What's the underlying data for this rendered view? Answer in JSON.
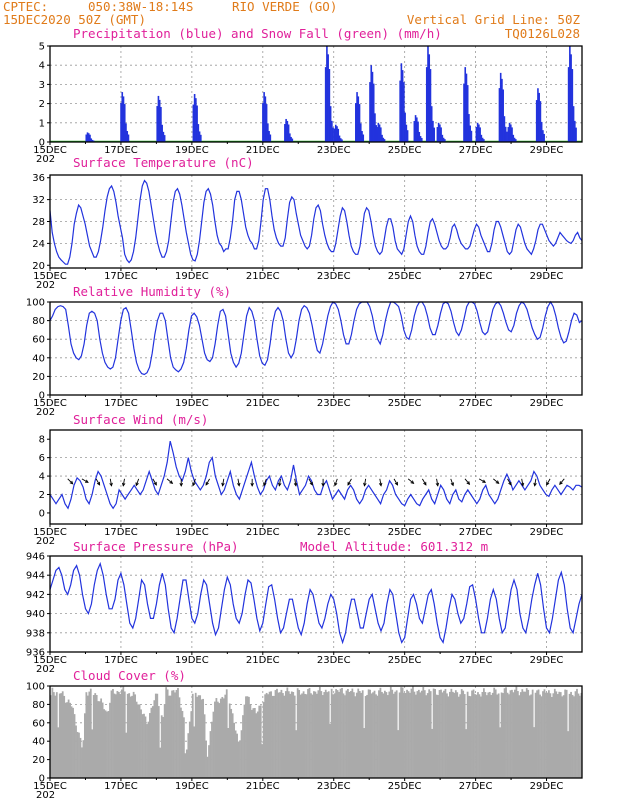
{
  "header": {
    "source": "CPTEC:",
    "coords": "050:38W-18:14S",
    "location": "RIO VERDE (GO)",
    "run": "15DEC2020 50Z (GMT)",
    "grid_note": "Vertical Grid Line: 50Z",
    "code": "TQ0126L028"
  },
  "colors": {
    "header": "#e07b1a",
    "title": "#e0209a",
    "series": "#2233dd",
    "snow": "#22aa22",
    "cloud": "#aaaaaa"
  },
  "x_axis": {
    "ticks": [
      "15DEC",
      "17DEC",
      "19DEC",
      "21DEC",
      "23DEC",
      "25DEC",
      "27DEC",
      "29DEC"
    ],
    "year_fragment": "202",
    "days_span": 15
  },
  "chart_data": [
    {
      "id": "precip",
      "type": "bar",
      "title": "Precipitation (blue) and Snow Fall (green) (mm/h)",
      "ylim": [
        0,
        5
      ],
      "yticks": [
        "0",
        "1",
        "2",
        "3",
        "4",
        "5"
      ],
      "bursts": [
        {
          "day": 1.1,
          "peak": 0.5
        },
        {
          "day": 2.08,
          "peak": 2.6
        },
        {
          "day": 3.1,
          "peak": 2.4
        },
        {
          "day": 4.12,
          "peak": 2.5
        },
        {
          "day": 6.08,
          "peak": 2.6
        },
        {
          "day": 6.7,
          "peak": 1.2
        },
        {
          "day": 7.85,
          "peak": 5.0
        },
        {
          "day": 8.1,
          "peak": 0.9
        },
        {
          "day": 8.7,
          "peak": 2.6
        },
        {
          "day": 9.1,
          "peak": 4.0
        },
        {
          "day": 9.3,
          "peak": 1.0
        },
        {
          "day": 9.95,
          "peak": 4.1
        },
        {
          "day": 10.35,
          "peak": 1.4
        },
        {
          "day": 10.7,
          "peak": 5.0
        },
        {
          "day": 11.0,
          "peak": 1.0
        },
        {
          "day": 11.75,
          "peak": 3.9
        },
        {
          "day": 12.1,
          "peak": 1.0
        },
        {
          "day": 12.75,
          "peak": 3.6
        },
        {
          "day": 13.0,
          "peak": 1.0
        },
        {
          "day": 13.8,
          "peak": 2.8
        },
        {
          "day": 14.7,
          "peak": 5.0
        }
      ],
      "snow": 0
    },
    {
      "id": "temp",
      "type": "line",
      "title": "Surface Temperature (nC)",
      "ylim": [
        19.5,
        36.5
      ],
      "yticks": [
        "20",
        "24",
        "28",
        "32",
        "36"
      ],
      "series": [
        {
          "name": "temperature",
          "values": [
            30.0,
            26.0,
            24.0,
            22.5,
            21.5,
            21.0,
            20.6,
            20.2,
            20.2,
            21.5,
            24.0,
            27.5,
            29.5,
            31.0,
            30.5,
            29.0,
            27.5,
            25.5,
            23.5,
            22.5,
            21.5,
            21.5,
            22.5,
            24.5,
            27.0,
            30.0,
            32.5,
            34.0,
            34.5,
            33.5,
            31.5,
            29.0,
            27.0,
            25.0,
            22.0,
            21.0,
            20.5,
            21.0,
            22.5,
            25.0,
            28.5,
            32.0,
            34.5,
            35.5,
            35.0,
            33.5,
            31.0,
            28.5,
            26.0,
            24.0,
            22.5,
            21.5,
            21.5,
            22.5,
            24.5,
            28.0,
            31.5,
            33.5,
            34.0,
            33.0,
            31.0,
            28.5,
            26.0,
            24.0,
            22.0,
            21.0,
            20.8,
            22.0,
            24.5,
            28.0,
            31.5,
            33.5,
            34.0,
            33.0,
            31.0,
            28.0,
            25.5,
            24.0,
            23.5,
            22.5,
            23.0,
            23.0,
            25.0,
            28.0,
            32.0,
            33.5,
            33.5,
            32.0,
            29.5,
            27.0,
            25.5,
            24.5,
            24.0,
            23.0,
            23.0,
            24.5,
            28.0,
            32.0,
            34.0,
            34.0,
            32.0,
            29.0,
            26.5,
            25.0,
            24.0,
            23.5,
            23.5,
            25.0,
            28.5,
            31.5,
            32.5,
            32.0,
            29.5,
            27.5,
            25.5,
            24.5,
            23.5,
            23.0,
            23.5,
            25.5,
            28.5,
            30.5,
            31.0,
            30.0,
            27.5,
            25.5,
            24.0,
            23.0,
            22.5,
            22.5,
            24.0,
            26.5,
            29.0,
            30.5,
            30.0,
            28.0,
            25.5,
            23.5,
            22.5,
            22.0,
            22.0,
            23.5,
            26.5,
            29.5,
            30.5,
            30.0,
            28.0,
            25.5,
            23.5,
            22.5,
            22.0,
            22.5,
            24.5,
            27.0,
            28.5,
            28.5,
            27.0,
            24.5,
            23.0,
            22.5,
            22.0,
            23.0,
            25.5,
            28.0,
            29.0,
            28.0,
            25.5,
            23.5,
            22.5,
            22.0,
            22.0,
            23.5,
            26.0,
            28.0,
            28.5,
            27.5,
            26.0,
            24.5,
            23.5,
            23.0,
            23.0,
            23.5,
            25.0,
            27.0,
            27.5,
            26.5,
            25.0,
            24.0,
            23.5,
            23.0,
            23.0,
            23.5,
            25.0,
            26.5,
            27.5,
            27.0,
            25.5,
            24.5,
            23.5,
            22.5,
            22.5,
            24.0,
            26.5,
            28.0,
            28.0,
            27.0,
            25.5,
            24.0,
            22.5,
            22.0,
            22.5,
            24.5,
            26.5,
            27.5,
            27.0,
            25.5,
            24.0,
            23.0,
            22.5,
            22.0,
            23.0,
            24.5,
            26.5,
            27.5,
            27.5,
            26.5,
            25.5,
            24.5,
            24.0,
            23.5,
            24.0,
            25.0,
            26.0,
            25.5,
            25.0,
            24.5,
            24.2,
            24.0,
            24.5,
            25.5,
            26.0,
            25.0,
            24.5
          ]
        }
      ]
    },
    {
      "id": "rh",
      "type": "line",
      "title": "Relative Humidity (%)",
      "ylim": [
        0,
        100
      ],
      "yticks": [
        "0",
        "20",
        "40",
        "60",
        "80",
        "100"
      ],
      "series": [
        {
          "name": "humidity",
          "values": [
            80,
            85,
            92,
            95,
            96,
            95,
            92,
            75,
            55,
            45,
            40,
            38,
            42,
            55,
            75,
            88,
            90,
            88,
            80,
            60,
            45,
            35,
            30,
            28,
            30,
            40,
            60,
            80,
            92,
            94,
            88,
            70,
            50,
            35,
            27,
            23,
            22,
            24,
            30,
            45,
            65,
            80,
            88,
            88,
            80,
            60,
            40,
            30,
            27,
            25,
            28,
            35,
            50,
            70,
            85,
            88,
            84,
            75,
            60,
            45,
            38,
            36,
            40,
            55,
            75,
            90,
            92,
            85,
            65,
            45,
            35,
            30,
            34,
            45,
            65,
            85,
            94,
            90,
            80,
            60,
            42,
            34,
            32,
            38,
            55,
            78,
            90,
            94,
            90,
            80,
            60,
            45,
            40,
            45,
            60,
            80,
            92,
            96,
            94,
            88,
            75,
            60,
            48,
            45,
            55,
            70,
            85,
            95,
            100,
            98,
            92,
            80,
            65,
            55,
            55,
            65,
            80,
            92,
            98,
            100,
            100,
            100,
            95,
            85,
            70,
            60,
            55,
            65,
            80,
            92,
            100,
            100,
            98,
            95,
            85,
            70,
            62,
            60,
            70,
            85,
            95,
            100,
            100,
            95,
            85,
            72,
            65,
            65,
            75,
            88,
            98,
            100,
            98,
            90,
            78,
            68,
            64,
            70,
            82,
            95,
            100,
            100,
            98,
            90,
            78,
            68,
            65,
            68,
            80,
            92,
            98,
            100,
            96,
            88,
            78,
            70,
            68,
            75,
            88,
            96,
            100,
            98,
            92,
            82,
            72,
            65,
            60,
            62,
            72,
            85,
            95,
            100,
            95,
            85,
            72,
            62,
            56,
            58,
            68,
            80,
            88,
            86,
            78,
            80
          ]
        }
      ]
    },
    {
      "id": "wind",
      "type": "line",
      "title": "Surface Wind (m/s)",
      "ylim": [
        -1.2,
        9
      ],
      "yticks": [
        "0",
        "2",
        "4",
        "6",
        "8"
      ],
      "series": [
        {
          "name": "wind_speed",
          "values": [
            2.0,
            1.5,
            1.0,
            1.5,
            2.0,
            1.0,
            0.5,
            1.5,
            3.0,
            3.8,
            3.5,
            2.8,
            1.5,
            1.0,
            2.0,
            3.5,
            4.5,
            4.0,
            3.0,
            2.0,
            1.0,
            0.5,
            1.0,
            2.5,
            2.0,
            1.5,
            2.0,
            2.5,
            3.0,
            2.5,
            2.0,
            2.5,
            3.5,
            4.5,
            3.5,
            2.5,
            2.0,
            3.0,
            4.0,
            5.5,
            7.8,
            6.5,
            5.0,
            4.0,
            3.5,
            4.5,
            6.0,
            4.5,
            3.5,
            3.0,
            2.5,
            3.0,
            4.0,
            5.5,
            6.0,
            4.0,
            3.0,
            2.0,
            2.5,
            3.5,
            4.5,
            3.0,
            2.0,
            1.5,
            2.5,
            3.5,
            4.5,
            5.5,
            4.0,
            2.8,
            2.0,
            2.5,
            3.5,
            4.0,
            3.0,
            2.5,
            3.5,
            4.0,
            3.0,
            2.5,
            3.5,
            5.2,
            3.5,
            2.0,
            2.5,
            3.0,
            4.0,
            3.5,
            2.5,
            2.0,
            2.0,
            3.0,
            3.5,
            2.5,
            1.5,
            2.0,
            2.5,
            2.0,
            1.5,
            2.5,
            3.0,
            2.5,
            1.5,
            1.0,
            1.5,
            2.5,
            3.0,
            2.5,
            2.0,
            1.5,
            1.0,
            2.0,
            2.5,
            3.5,
            3.0,
            2.0,
            1.5,
            1.0,
            0.8,
            1.5,
            2.0,
            1.5,
            1.0,
            0.8,
            1.5,
            2.0,
            2.5,
            1.5,
            1.0,
            2.0,
            3.0,
            2.5,
            1.5,
            1.0,
            2.0,
            2.5,
            1.5,
            1.2,
            2.0,
            2.5,
            2.0,
            1.5,
            1.0,
            1.5,
            2.5,
            3.0,
            2.0,
            1.5,
            1.0,
            1.5,
            2.5,
            3.5,
            4.2,
            3.5,
            2.5,
            3.0,
            3.5,
            3.0,
            2.5,
            3.0,
            3.5,
            4.5,
            4.0,
            3.0,
            2.5,
            2.0,
            1.8,
            2.5,
            3.0,
            2.5,
            2.0,
            2.5,
            3.0,
            2.8,
            2.5,
            3.0,
            3.0,
            2.8
          ]
        }
      ],
      "arrows_deg": [
        315,
        330,
        300,
        280,
        260,
        250,
        300,
        320,
        270,
        250,
        240,
        260,
        280,
        270,
        250,
        260,
        280,
        300,
        270,
        250,
        240,
        260,
        280,
        300,
        320,
        300,
        280,
        290,
        310,
        330,
        320,
        300,
        280,
        260,
        240,
        230
      ]
    },
    {
      "id": "press",
      "type": "line",
      "title": "Surface Pressure (hPa)",
      "model_altitude": "Model Altitude: 601.312 m",
      "ylim": [
        936,
        946
      ],
      "yticks": [
        "936",
        "938",
        "940",
        "942",
        "944",
        "946"
      ],
      "series": [
        {
          "name": "pressure",
          "values": [
            942.5,
            943.5,
            944.5,
            944.8,
            944.0,
            942.5,
            942.0,
            943.0,
            944.5,
            945.0,
            944.0,
            942.0,
            940.5,
            940.0,
            941.0,
            943.0,
            944.5,
            945.2,
            944.0,
            942.0,
            940.5,
            940.5,
            941.5,
            943.5,
            944.2,
            943.0,
            941.0,
            939.0,
            938.5,
            939.5,
            941.5,
            943.5,
            943.0,
            941.0,
            939.5,
            939.5,
            941.0,
            943.0,
            944.2,
            943.0,
            940.5,
            938.5,
            938.0,
            939.5,
            941.5,
            943.5,
            943.5,
            941.5,
            939.5,
            939.0,
            940.0,
            942.0,
            943.5,
            943.0,
            941.0,
            939.0,
            937.8,
            938.5,
            940.5,
            942.5,
            943.8,
            943.0,
            941.0,
            939.5,
            939.0,
            940.0,
            942.0,
            943.5,
            943.2,
            941.5,
            939.5,
            938.2,
            939.0,
            941.0,
            942.8,
            943.0,
            941.5,
            939.5,
            938.0,
            938.5,
            940.0,
            941.5,
            941.5,
            940.0,
            938.5,
            937.8,
            939.0,
            941.0,
            942.5,
            942.0,
            940.5,
            939.0,
            938.5,
            939.5,
            941.0,
            942.0,
            941.5,
            940.0,
            938.0,
            937.0,
            938.0,
            940.0,
            941.5,
            941.5,
            940.0,
            938.5,
            938.5,
            940.0,
            941.5,
            942.0,
            940.5,
            939.0,
            938.2,
            939.0,
            941.0,
            942.5,
            942.0,
            940.0,
            938.0,
            937.0,
            937.5,
            939.5,
            941.5,
            942.0,
            941.0,
            939.5,
            939.0,
            940.5,
            942.0,
            942.5,
            941.0,
            939.0,
            937.5,
            937.0,
            938.5,
            940.5,
            942.0,
            941.5,
            940.0,
            939.0,
            939.5,
            941.0,
            942.8,
            943.0,
            941.5,
            939.5,
            938.0,
            938.0,
            939.5,
            941.5,
            942.5,
            941.5,
            939.5,
            938.0,
            938.5,
            940.5,
            942.5,
            943.5,
            942.5,
            940.0,
            938.5,
            938.0,
            939.5,
            941.5,
            943.0,
            944.2,
            943.0,
            940.5,
            938.5,
            938.0,
            939.5,
            941.5,
            943.5,
            944.3,
            943.0,
            940.5,
            938.5,
            938.0,
            939.5,
            941.0,
            942.0
          ]
        }
      ]
    },
    {
      "id": "cloud",
      "type": "area",
      "title": "Cloud Cover (%)",
      "ylim": [
        0,
        100
      ],
      "yticks": [
        "0",
        "20",
        "40",
        "60",
        "80",
        "100"
      ],
      "profile_days": [
        0,
        0.05,
        0.3,
        0.6,
        0.9,
        1.0,
        1.3,
        1.6,
        1.7,
        2.0,
        2.4,
        2.7,
        2.9,
        3.0,
        3.15,
        3.25,
        3.4,
        3.6,
        3.75,
        3.8,
        4.0,
        4.3,
        4.4,
        4.6,
        5.0,
        5.3,
        5.5,
        5.8,
        6.1,
        6.5,
        7.0,
        8.0,
        9.0,
        10.0,
        11.0,
        12.0,
        13.0,
        14.0,
        15.0
      ],
      "profile_values": [
        88,
        95,
        92,
        78,
        30,
        95,
        90,
        70,
        92,
        95,
        88,
        60,
        82,
        92,
        60,
        96,
        92,
        96,
        62,
        20,
        92,
        88,
        20,
        80,
        93,
        35,
        90,
        70,
        92,
        94,
        93,
        95,
        93,
        95,
        94,
        92,
        95,
        93,
        92
      ]
    }
  ]
}
